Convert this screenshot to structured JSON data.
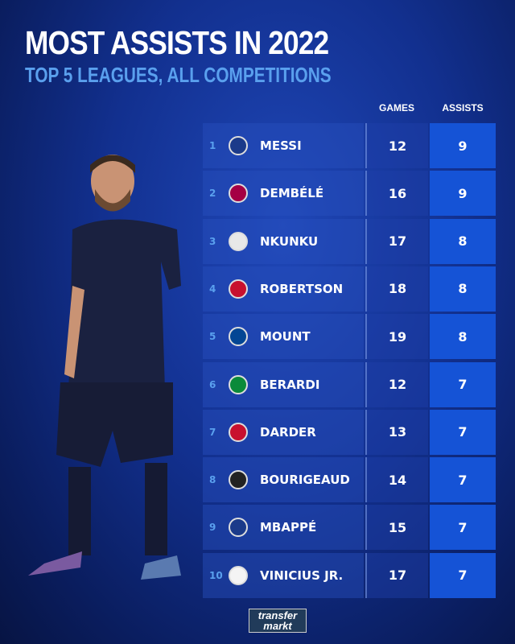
{
  "title": "MOST ASSISTS IN 2022",
  "subtitle": "TOP 5 LEAGUES, ALL COMPETITIONS",
  "columns": {
    "games": "GAMES",
    "assists": "ASSISTS"
  },
  "logo": {
    "line1": "transfer",
    "line2": "markt"
  },
  "chart_data": {
    "type": "table",
    "title": "MOST ASSISTS IN 2022",
    "subtitle": "TOP 5 LEAGUES, ALL COMPETITIONS",
    "columns": [
      "",
      "",
      "GAMES",
      "ASSISTS"
    ],
    "rows": [
      {
        "rank": "1",
        "club_icon": "psg-crest",
        "player": "MESSI",
        "games": "12",
        "assists": "9",
        "crest_color": "#1b3a8a"
      },
      {
        "rank": "2",
        "club_icon": "barcelona-crest",
        "player": "DEMBÉLÉ",
        "games": "16",
        "assists": "9",
        "crest_color": "#a50044"
      },
      {
        "rank": "3",
        "club_icon": "leipzig-crest",
        "player": "NKUNKU",
        "games": "17",
        "assists": "8",
        "crest_color": "#e8e8e8"
      },
      {
        "rank": "4",
        "club_icon": "liverpool-crest",
        "player": "ROBERTSON",
        "games": "18",
        "assists": "8",
        "crest_color": "#c8102e"
      },
      {
        "rank": "5",
        "club_icon": "chelsea-crest",
        "player": "MOUNT",
        "games": "19",
        "assists": "8",
        "crest_color": "#034694"
      },
      {
        "rank": "6",
        "club_icon": "sassuolo-crest",
        "player": "BERARDI",
        "games": "12",
        "assists": "7",
        "crest_color": "#0a8a3a"
      },
      {
        "rank": "7",
        "club_icon": "espanyol-crest",
        "player": "DARDER",
        "games": "13",
        "assists": "7",
        "crest_color": "#c8102e"
      },
      {
        "rank": "8",
        "club_icon": "rennes-crest",
        "player": "BOURIGEAUD",
        "games": "14",
        "assists": "7",
        "crest_color": "#222"
      },
      {
        "rank": "9",
        "club_icon": "psg-crest",
        "player": "MBAPPÉ",
        "games": "15",
        "assists": "7",
        "crest_color": "#1b3a8a"
      },
      {
        "rank": "10",
        "club_icon": "real-madrid-crest",
        "player": "VINICIUS JR.",
        "games": "17",
        "assists": "7",
        "crest_color": "#f4f4f4"
      }
    ]
  }
}
